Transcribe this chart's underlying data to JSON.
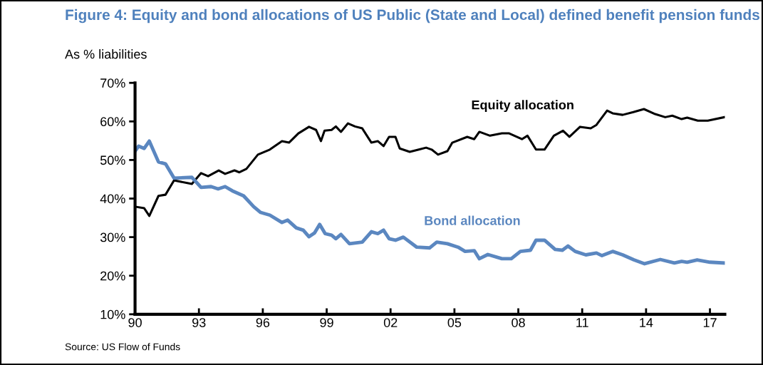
{
  "chart_data": {
    "type": "line",
    "title": "Figure 4: Equity and bond allocations of US Public (State and Local) defined benefit pension funds",
    "subtitle": "As % liabilities",
    "annotations": [
      "Source: US Flow of Funds"
    ],
    "xlim": [
      1990,
      2017.7
    ],
    "xticks": [
      {
        "value": 1990,
        "label": "90"
      },
      {
        "value": 1993,
        "label": "93"
      },
      {
        "value": 1996,
        "label": "96"
      },
      {
        "value": 1999,
        "label": "99"
      },
      {
        "value": 2002,
        "label": "02"
      },
      {
        "value": 2005,
        "label": "05"
      },
      {
        "value": 2008,
        "label": "08"
      },
      {
        "value": 2011,
        "label": "11"
      },
      {
        "value": 2014,
        "label": "14"
      },
      {
        "value": 2017,
        "label": "17"
      }
    ],
    "ylim": [
      10,
      70
    ],
    "yticks": [
      {
        "value": 10,
        "label": "10%"
      },
      {
        "value": 20,
        "label": "20%"
      },
      {
        "value": 30,
        "label": "30%"
      },
      {
        "value": 40,
        "label": "40%"
      },
      {
        "value": 50,
        "label": "50%"
      },
      {
        "value": 60,
        "label": "60%"
      },
      {
        "value": 70,
        "label": "70%"
      }
    ],
    "grid": false,
    "legend": false,
    "marker": "none",
    "line_style": "solid",
    "series": [
      {
        "name": "Equity allocation",
        "color": "#000000",
        "x": [
          1990.0,
          1990.43,
          1990.67,
          1991.1,
          1991.43,
          1991.83,
          1992.67,
          1993.1,
          1993.43,
          1993.93,
          1994.23,
          1994.67,
          1994.9,
          1995.23,
          1995.77,
          1996.33,
          1996.9,
          1997.23,
          1997.67,
          1998.17,
          1998.5,
          1998.73,
          1998.9,
          1999.23,
          1999.43,
          1999.67,
          2000.0,
          2000.33,
          2000.67,
          2001.1,
          2001.4,
          2001.67,
          2001.93,
          2002.23,
          2002.43,
          2002.9,
          2003.33,
          2003.67,
          2003.93,
          2004.23,
          2004.67,
          2004.9,
          2005.6,
          2005.93,
          2006.17,
          2006.67,
          2007.23,
          2007.57,
          2008.17,
          2008.43,
          2008.83,
          2009.23,
          2009.67,
          2010.1,
          2010.4,
          2010.9,
          2011.4,
          2011.67,
          2012.17,
          2012.43,
          2012.9,
          2013.4,
          2013.9,
          2014.43,
          2014.9,
          2015.23,
          2015.67,
          2015.93,
          2016.43,
          2016.9,
          2017.67
        ],
        "values": [
          37.9,
          37.5,
          35.5,
          40.7,
          41.0,
          44.7,
          43.8,
          46.6,
          45.8,
          47.3,
          46.4,
          47.3,
          46.8,
          47.7,
          51.4,
          52.7,
          54.9,
          54.5,
          56.9,
          58.6,
          57.8,
          54.9,
          57.6,
          57.8,
          58.7,
          57.3,
          59.5,
          58.7,
          58.2,
          54.5,
          54.9,
          53.6,
          56.0,
          56.0,
          53.0,
          52.1,
          52.7,
          53.2,
          52.7,
          51.4,
          52.3,
          54.5,
          56.0,
          55.4,
          57.3,
          56.3,
          56.9,
          56.9,
          55.4,
          56.3,
          52.7,
          52.7,
          56.3,
          57.6,
          56.0,
          58.6,
          58.2,
          59.1,
          62.8,
          62.1,
          61.7,
          62.4,
          63.2,
          61.9,
          61.1,
          61.5,
          60.6,
          61.0,
          60.2,
          60.2,
          61.1
        ]
      },
      {
        "name": "Bond allocation",
        "color": "#5b87c0",
        "x": [
          1990.0,
          1990.17,
          1990.43,
          1990.67,
          1991.1,
          1991.43,
          1991.83,
          1992.67,
          1993.1,
          1993.57,
          1993.9,
          1994.23,
          1994.57,
          1995.1,
          1995.57,
          1995.9,
          1996.33,
          1996.9,
          1997.17,
          1997.57,
          1997.9,
          1998.17,
          1998.43,
          1998.67,
          1998.93,
          1999.23,
          1999.43,
          1999.67,
          2000.07,
          2000.67,
          2001.1,
          2001.4,
          2001.67,
          2001.93,
          2002.23,
          2002.6,
          2003.23,
          2003.83,
          2004.17,
          2004.67,
          2005.17,
          2005.5,
          2005.93,
          2006.17,
          2006.57,
          2007.23,
          2007.67,
          2008.1,
          2008.57,
          2008.83,
          2009.23,
          2009.73,
          2010.07,
          2010.33,
          2010.67,
          2011.17,
          2011.67,
          2011.93,
          2012.43,
          2012.9,
          2013.43,
          2013.93,
          2014.67,
          2015.33,
          2015.67,
          2015.93,
          2016.4,
          2017.0,
          2017.67
        ],
        "values": [
          52.3,
          53.6,
          53.0,
          54.9,
          49.5,
          49.0,
          45.3,
          45.5,
          42.9,
          43.1,
          42.5,
          43.1,
          42.0,
          40.7,
          37.9,
          36.4,
          35.7,
          33.8,
          34.4,
          32.4,
          31.8,
          30.1,
          31.1,
          33.3,
          30.9,
          30.5,
          29.6,
          30.7,
          28.3,
          28.7,
          31.4,
          30.9,
          31.8,
          29.6,
          29.2,
          30.0,
          27.4,
          27.2,
          28.7,
          28.3,
          27.4,
          26.3,
          26.5,
          24.4,
          25.5,
          24.4,
          24.4,
          26.3,
          26.6,
          29.2,
          29.2,
          26.8,
          26.6,
          27.7,
          26.3,
          25.4,
          25.9,
          25.2,
          26.3,
          25.4,
          24.1,
          23.1,
          24.2,
          23.3,
          23.7,
          23.5,
          24.1,
          23.5,
          23.3
        ]
      }
    ]
  }
}
